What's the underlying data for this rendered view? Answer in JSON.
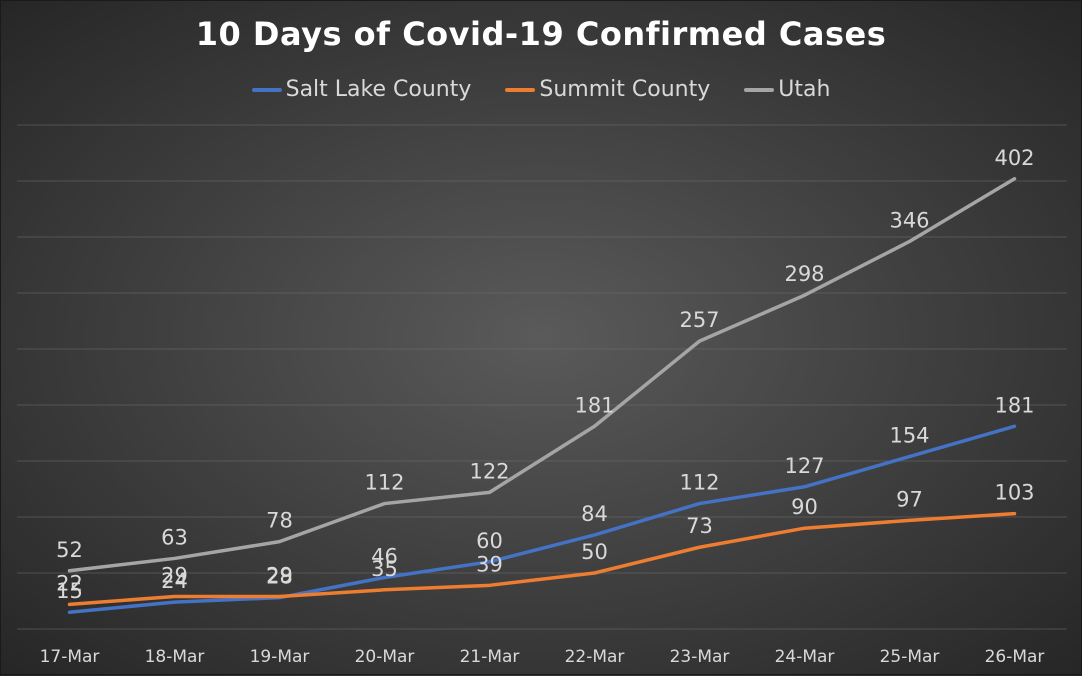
{
  "chart_data": {
    "type": "line",
    "title": "10 Days of Covid-19 Confirmed Cases",
    "categories": [
      "17-Mar",
      "18-Mar",
      "19-Mar",
      "20-Mar",
      "21-Mar",
      "22-Mar",
      "23-Mar",
      "24-Mar",
      "25-Mar",
      "26-Mar"
    ],
    "series": [
      {
        "name": "Salt Lake County",
        "color": "#4472C4",
        "values": [
          15,
          24,
          28,
          46,
          60,
          84,
          112,
          127,
          154,
          181
        ]
      },
      {
        "name": "Summit County",
        "color": "#ED7D31",
        "values": [
          22,
          29,
          29,
          35,
          39,
          50,
          73,
          90,
          97,
          103
        ]
      },
      {
        "name": "Utah",
        "color": "#A5A5A5",
        "values": [
          52,
          63,
          78,
          112,
          122,
          181,
          257,
          298,
          346,
          402
        ]
      }
    ],
    "ylim": [
      0,
      450
    ],
    "grid": true,
    "legend_position": "top",
    "data_labels": true
  }
}
